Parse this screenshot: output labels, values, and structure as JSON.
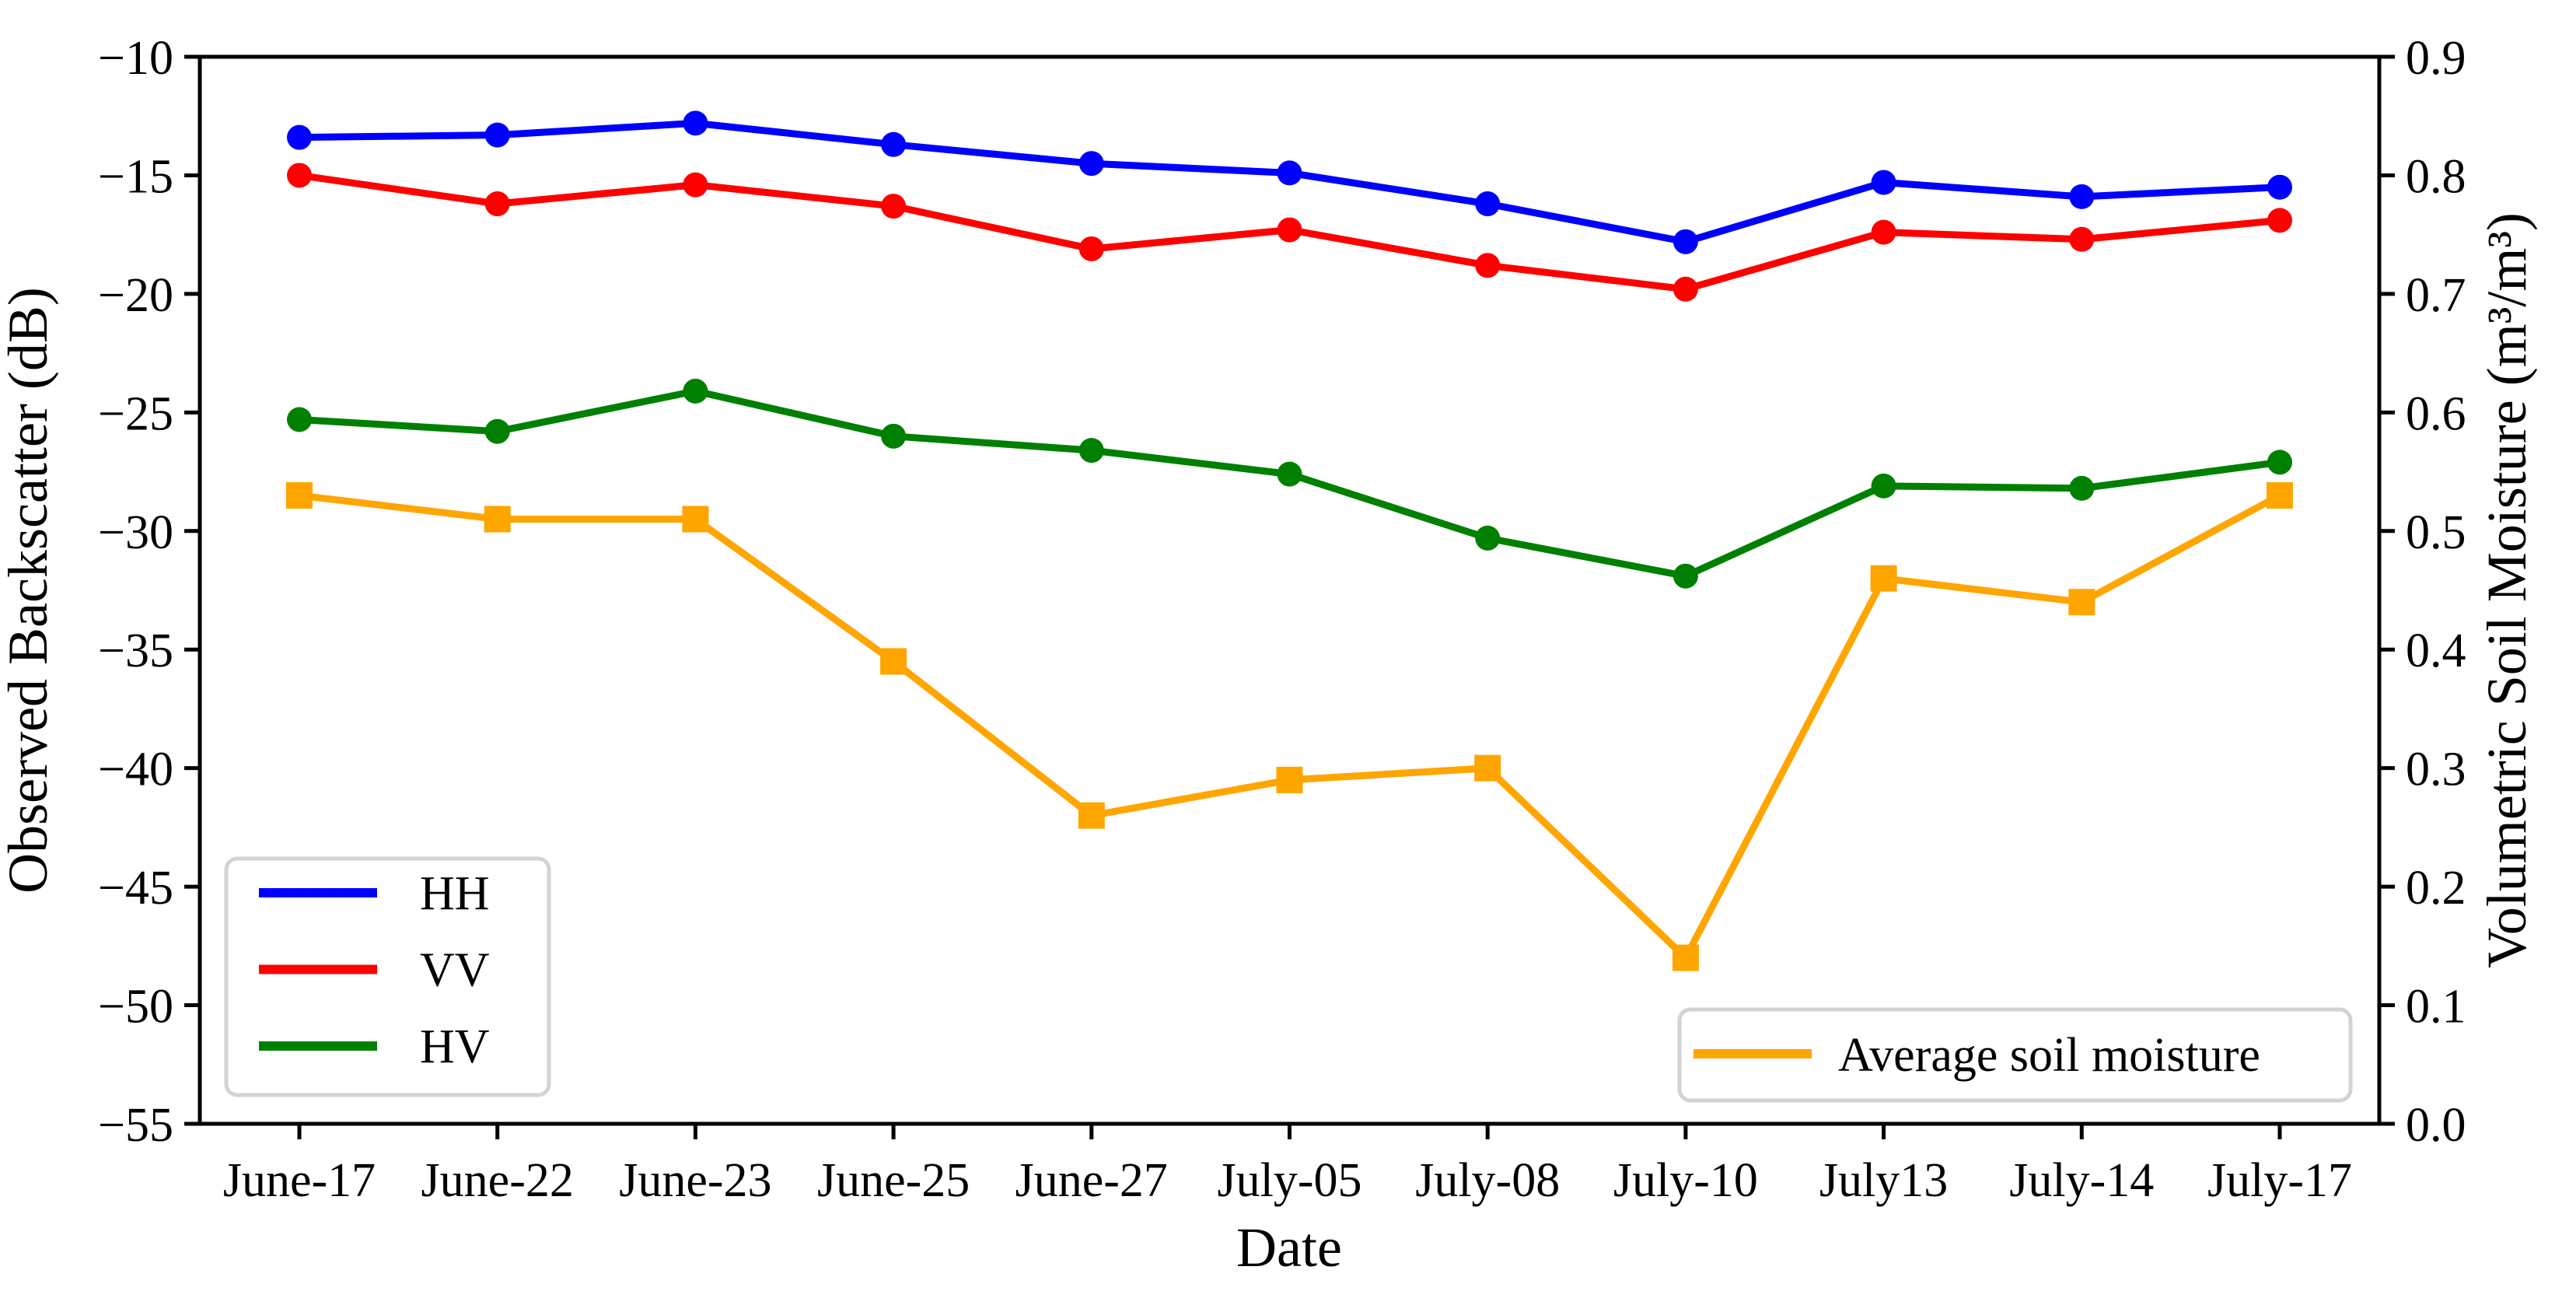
{
  "figure": {
    "xlabel": "Date",
    "ylabel_left": "Observed Backscatter (dB)",
    "ylabel_right": "Volumetric Soil Moisture (m³/m³)",
    "background": "#ffffff",
    "spine_color": "#000000"
  },
  "chart_data": {
    "type": "line",
    "title": "",
    "xlabel": "Date",
    "ylabel": "Observed Backscatter (dB)",
    "ylabel_right": "Volumetric Soil Moisture (m³/m³)",
    "grid": false,
    "categories": [
      "June-17",
      "June-22",
      "June-23",
      "June-25",
      "June-27",
      "July-05",
      "July-08",
      "July-10",
      "July13",
      "July-14",
      "July-17"
    ],
    "series": [
      {
        "name": "HH",
        "axis": "left",
        "color": "#0000ff",
        "marker": "circle",
        "values": [
          -13.4,
          -13.3,
          -12.8,
          -13.7,
          -14.5,
          -14.9,
          -16.2,
          -17.8,
          -15.3,
          -15.9,
          -15.5
        ]
      },
      {
        "name": "VV",
        "axis": "left",
        "color": "#ff0000",
        "marker": "circle",
        "values": [
          -15.0,
          -16.2,
          -15.4,
          -16.3,
          -18.1,
          -17.3,
          -18.8,
          -19.8,
          -17.4,
          -17.7,
          -16.9
        ]
      },
      {
        "name": "HV",
        "axis": "left",
        "color": "#008000",
        "marker": "circle",
        "values": [
          -25.3,
          -25.8,
          -24.1,
          -26.0,
          -26.6,
          -27.6,
          -30.3,
          -31.9,
          -28.1,
          -28.2,
          -27.1
        ]
      },
      {
        "name": "Average soil moisture",
        "axis": "right",
        "color": "#ffa500",
        "marker": "square",
        "values": [
          0.53,
          0.51,
          0.51,
          0.39,
          0.26,
          0.29,
          0.3,
          0.14,
          0.46,
          0.44,
          0.53
        ]
      }
    ],
    "left_axis": {
      "min": -55,
      "max": -10,
      "ticks": [
        -10,
        -15,
        -20,
        -25,
        -30,
        -35,
        -40,
        -45,
        -50,
        -55
      ]
    },
    "right_axis": {
      "min": 0.0,
      "max": 0.9,
      "ticks": [
        0.9,
        0.8,
        0.7,
        0.6,
        0.5,
        0.4,
        0.3,
        0.2,
        0.1,
        0.0
      ]
    },
    "legend_left": {
      "entries": [
        "HH",
        "VV",
        "HV"
      ]
    },
    "legend_right": {
      "entries": [
        "Average soil moisture"
      ]
    }
  }
}
